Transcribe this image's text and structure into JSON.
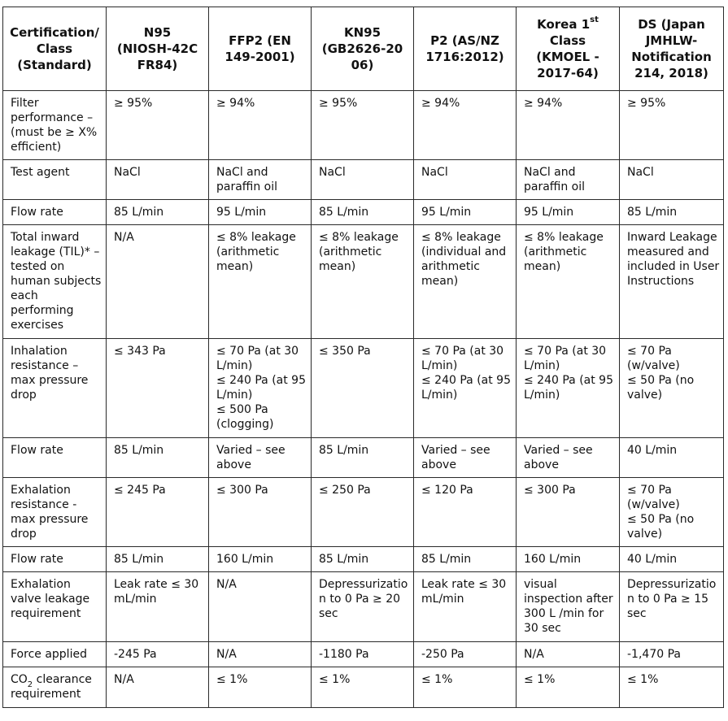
{
  "table": {
    "headers": [
      {
        "lines": [
          "Certification/",
          "Class",
          "(Standard)"
        ]
      },
      {
        "lines": [
          "N95",
          "(NIOSH-42C",
          "FR84)"
        ]
      },
      {
        "lines": [
          "FFP2 (EN",
          "149-2001)"
        ]
      },
      {
        "lines": [
          "KN95",
          "(GB2626-20",
          "06)"
        ]
      },
      {
        "lines": [
          "P2 (AS/NZ",
          "1716:2012)"
        ]
      },
      {
        "pre": "Korea 1",
        "sup": "st",
        "lines": [
          "Class",
          "(KMOEL -",
          "2017-64)"
        ]
      },
      {
        "lines": [
          "DS (Japan",
          "JMHLW-",
          "Notification",
          "214, 2018)"
        ]
      }
    ],
    "rows": [
      {
        "label": [
          "Filter",
          "performance –",
          "(must be ≥ X%",
          "efficient)"
        ],
        "cells": [
          [
            "≥ 95%"
          ],
          [
            "≥ 94%"
          ],
          [
            "≥ 95%"
          ],
          [
            "≥ 94%"
          ],
          [
            "≥ 94%"
          ],
          [
            "≥ 95%"
          ]
        ]
      },
      {
        "label": [
          "Test agent"
        ],
        "cells": [
          [
            "NaCl"
          ],
          [
            "NaCl and",
            "paraffin oil"
          ],
          [
            "NaCl"
          ],
          [
            "NaCl"
          ],
          [
            "NaCl and",
            "paraffin oil"
          ],
          [
            "NaCl"
          ]
        ]
      },
      {
        "label": [
          "Flow rate"
        ],
        "cells": [
          [
            "85 L/min"
          ],
          [
            "95 L/min"
          ],
          [
            "85 L/min"
          ],
          [
            "95 L/min"
          ],
          [
            "95 L/min"
          ],
          [
            "85 L/min"
          ]
        ]
      },
      {
        "label": [
          "Total inward",
          "leakage (TIL)* –",
          "tested on",
          "human subjects",
          "each",
          "performing",
          "exercises"
        ],
        "cells": [
          [
            "N/A"
          ],
          [
            "≤ 8% leakage",
            "(arithmetic",
            "mean)"
          ],
          [
            "≤ 8% leakage",
            "(arithmetic",
            "mean)"
          ],
          [
            "≤ 8% leakage",
            "(individual and",
            "arithmetic",
            "mean)"
          ],
          [
            "≤ 8% leakage",
            "(arithmetic",
            "mean)"
          ],
          [
            "Inward Leakage",
            "measured and",
            "included in User",
            "Instructions"
          ]
        ]
      },
      {
        "label": [
          "Inhalation",
          "resistance –",
          "max pressure",
          "drop"
        ],
        "cells": [
          [
            "≤ 343 Pa"
          ],
          [
            "≤ 70 Pa (at 30",
            "L/min)",
            "≤ 240 Pa (at 95",
            "L/min)",
            "≤ 500 Pa",
            "(clogging)"
          ],
          [
            "≤ 350 Pa"
          ],
          [
            "≤ 70 Pa (at 30",
            "L/min)",
            "≤ 240 Pa (at 95",
            "L/min)"
          ],
          [
            "≤ 70 Pa (at 30",
            "L/min)",
            "≤ 240 Pa (at 95",
            "L/min)"
          ],
          [
            "≤ 70 Pa",
            "(w/valve)",
            "≤ 50 Pa (no",
            "valve)"
          ]
        ]
      },
      {
        "label": [
          "Flow rate"
        ],
        "cells": [
          [
            "85 L/min"
          ],
          [
            "Varied – see",
            "above"
          ],
          [
            "85 L/min"
          ],
          [
            "Varied – see",
            "above"
          ],
          [
            "Varied – see",
            "above"
          ],
          [
            "40 L/min"
          ]
        ]
      },
      {
        "label": [
          "Exhalation",
          "resistance -",
          "max pressure",
          "drop"
        ],
        "cells": [
          [
            "≤ 245 Pa"
          ],
          [
            "≤ 300 Pa"
          ],
          [
            "≤ 250 Pa"
          ],
          [
            "≤ 120 Pa"
          ],
          [
            "≤ 300 Pa"
          ],
          [
            "≤ 70 Pa",
            "(w/valve)",
            "≤ 50 Pa (no",
            "valve)"
          ]
        ]
      },
      {
        "label": [
          "Flow rate"
        ],
        "cells": [
          [
            "85 L/min"
          ],
          [
            "160 L/min"
          ],
          [
            "85 L/min"
          ],
          [
            "85 L/min"
          ],
          [
            "160 L/min"
          ],
          [
            "40 L/min"
          ]
        ]
      },
      {
        "label": [
          "Exhalation",
          "valve leakage",
          "requirement"
        ],
        "cells": [
          [
            "Leak rate ≤ 30",
            "mL/min"
          ],
          [
            "N/A"
          ],
          [
            "Depressurizatio",
            "n to 0 Pa ≥ 20",
            "sec"
          ],
          [
            "Leak rate ≤ 30",
            "mL/min"
          ],
          [
            "visual",
            "inspection after",
            "300 L /min for",
            "30 sec"
          ],
          [
            "Depressurizatio",
            "n to 0 Pa ≥ 15",
            "sec"
          ]
        ]
      },
      {
        "label": [
          "Force applied"
        ],
        "cells": [
          [
            "-245 Pa"
          ],
          [
            "N/A"
          ],
          [
            "-1180 Pa"
          ],
          [
            "-250 Pa"
          ],
          [
            "N/A"
          ],
          [
            "-1,470 Pa"
          ]
        ]
      },
      {
        "label_pre": "CO",
        "label_sub": "2",
        "label_post": " clearance",
        "label": [
          "requirement"
        ],
        "cells": [
          [
            "N/A"
          ],
          [
            "≤ 1%"
          ],
          [
            "≤ 1%"
          ],
          [
            "≤ 1%"
          ],
          [
            "≤ 1%"
          ],
          [
            "≤ 1%"
          ]
        ]
      }
    ]
  }
}
